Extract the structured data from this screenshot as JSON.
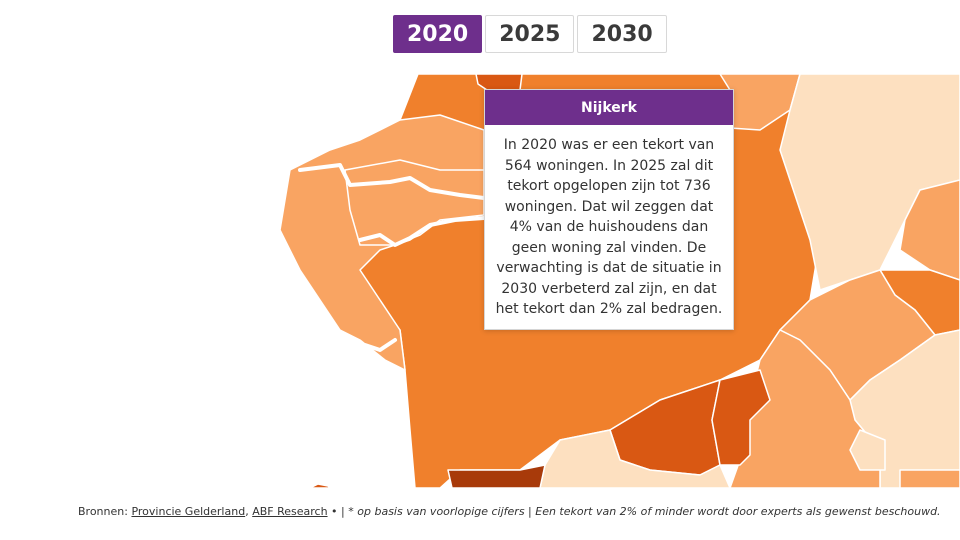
{
  "year_tabs": [
    {
      "label": "2020",
      "active": true
    },
    {
      "label": "2025",
      "active": false
    },
    {
      "label": "2030",
      "active": false
    }
  ],
  "tooltip": {
    "title": "Nijkerk",
    "body": "In 2020 was er een tekort van 564 woningen. In 2025 zal dit tekort opgelopen zijn tot 736 woningen. Dat wil zeggen dat 4% van de huishoudens dan geen woning zal vinden. De verwachting is dat de situatie in 2030 verbeterd zal zijn, en dat het tekort dan 2% zal bedragen."
  },
  "footer": {
    "sources_label": "Bronnen:",
    "source_1": "Provincie Gelderland",
    "separator_1": ",",
    "source_2": "ABF Research",
    "bullet": "•",
    "pipe": "|",
    "note": "* op basis van voorlopige cijfers | Een tekort van 2% of minder wordt door experts als gewenst beschouwd."
  },
  "colors": {
    "accent": "#6e2f8c",
    "very_light": "#fde0c0",
    "light": "#f9a462",
    "medium": "#f0802c",
    "dark": "#d95813",
    "darkest": "#a83a0a",
    "border": "#ffffff"
  }
}
